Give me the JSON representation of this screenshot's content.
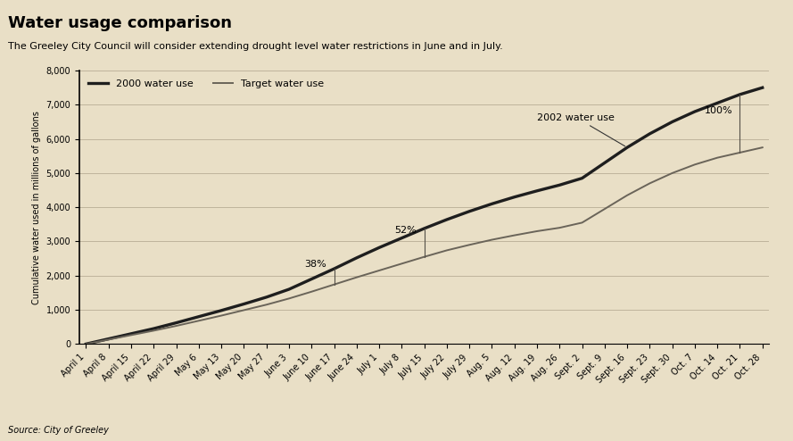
{
  "chart_data": {
    "type": "line",
    "title": "Water usage comparison",
    "subtitle": "The Greeley City Council will consider extending drought level water restrictions in June and in July.",
    "y_label": "Cumulative water used in millions of gallons",
    "source": "Source: City of Greeley",
    "categories": [
      "April 1",
      "April 8",
      "April 15",
      "April 22",
      "April 29",
      "May 6",
      "May 13",
      "May 20",
      "May 27",
      "June 3",
      "June 10",
      "June 17",
      "June 24",
      "July 1",
      "July 8",
      "July 15",
      "July 22",
      "July 29",
      "Aug. 5",
      "Aug. 12",
      "Aug. 19",
      "Aug. 26",
      "Sept. 2",
      "Sept. 9",
      "Sept. 16",
      "Sept. 23",
      "Sept. 30",
      "Oct. 7",
      "Oct. 14",
      "Oct. 21",
      "Oct. 28"
    ],
    "series": [
      {
        "name": "2000 water use",
        "color": "#1e1e1e",
        "line_style": "solid",
        "values": [
          0,
          150,
          300,
          450,
          620,
          800,
          980,
          1170,
          1370,
          1600,
          1900,
          2200,
          2520,
          2820,
          3100,
          3380,
          3640,
          3880,
          4100,
          4300,
          4480,
          4650,
          4850,
          5300,
          5750,
          6150,
          6500,
          6800,
          7050,
          7300,
          7500
        ]
      },
      {
        "name": "Target water use",
        "color": "#6a6459",
        "line_style": "solid",
        "values": [
          0,
          130,
          260,
          390,
          530,
          680,
          830,
          990,
          1150,
          1330,
          1530,
          1740,
          1950,
          2150,
          2350,
          2550,
          2740,
          2900,
          3050,
          3180,
          3300,
          3400,
          3550,
          3950,
          4350,
          4700,
          5000,
          5250,
          5450,
          5600,
          5750
        ]
      }
    ],
    "annotations": [
      {
        "text": "38%",
        "category": "June 17"
      },
      {
        "text": "52%",
        "category": "July 15"
      },
      {
        "text": "100%",
        "category": "Oct. 21"
      }
    ],
    "series_note": {
      "text": "2002 water use",
      "category": "Sept. 16"
    },
    "ylim": [
      0,
      8000
    ],
    "yticks": [
      0,
      {
        "value": 1000,
        "label": "1,000"
      },
      {
        "value": 2000,
        "label": "2,000"
      },
      {
        "value": 3000,
        "label": "3,000"
      },
      {
        "value": 4000,
        "label": "4,000"
      },
      {
        "value": 5000,
        "label": "5,000"
      },
      {
        "value": 6000,
        "label": "6,000"
      },
      {
        "value": 7000,
        "label": "7,000"
      },
      {
        "value": 8000,
        "label": "8,000"
      }
    ],
    "grid": true,
    "legend": "upper left"
  }
}
